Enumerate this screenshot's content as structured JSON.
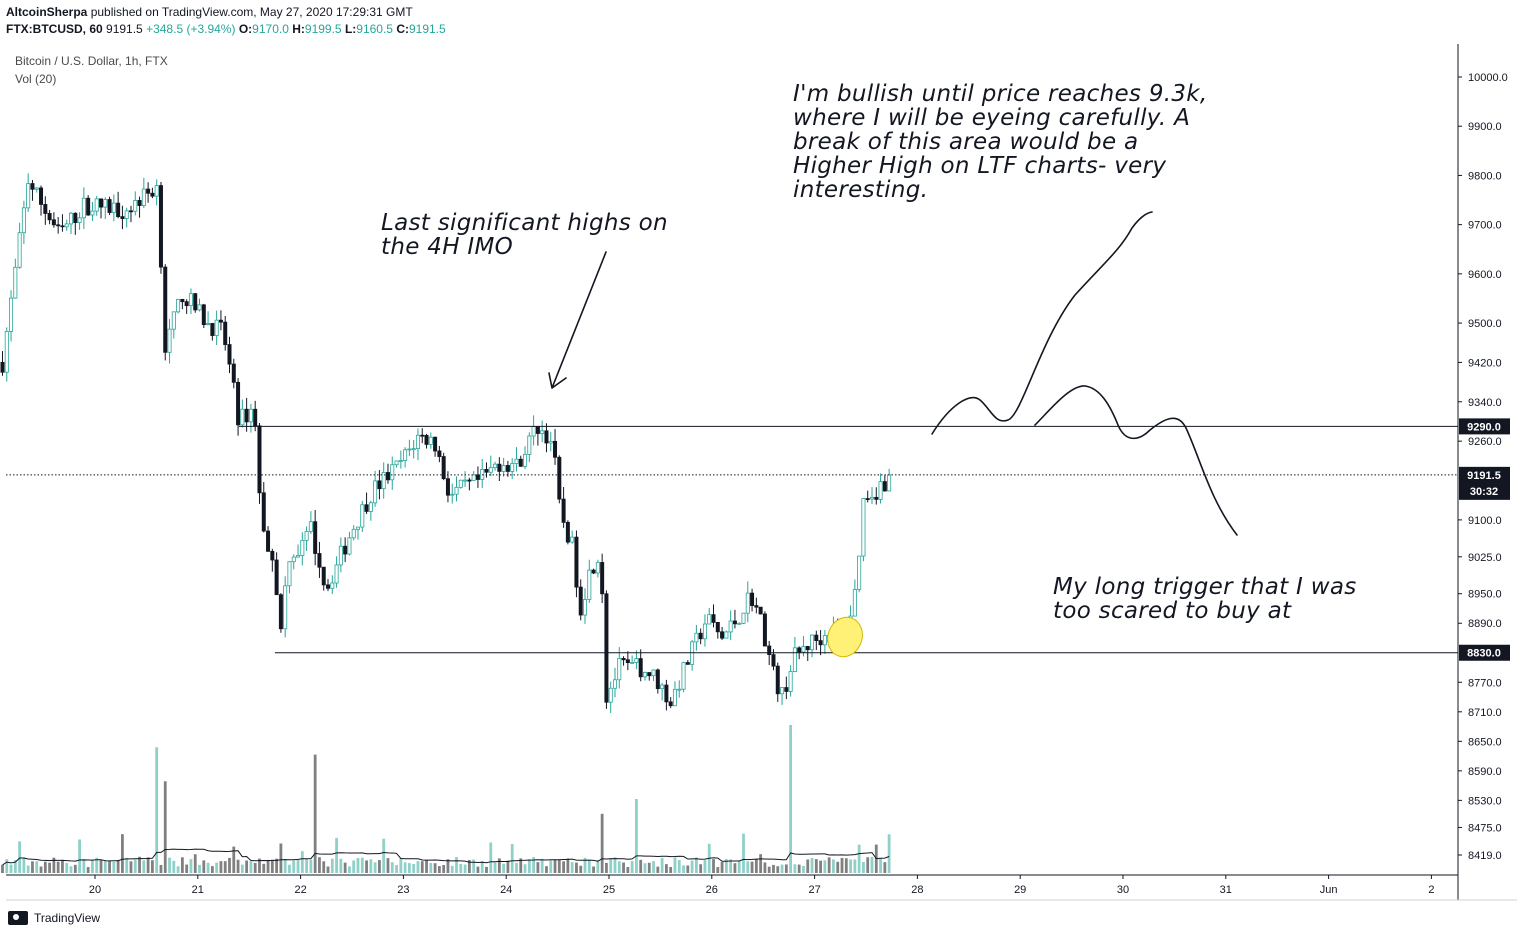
{
  "header": {
    "author": "AltcoinSherpa",
    "published": " published on TradingView.com, May 27, 2020 17:29:31 GMT",
    "symbol": "FTX:BTCUSD, 60",
    "last": "9191.5",
    "change": "+348.5 (+3.94%)",
    "o_label": "O:",
    "o_value": "9170.0",
    "h_label": "H:",
    "h_value": "9199.5",
    "l_label": "L:",
    "l_value": "9160.5",
    "c_label": "C:",
    "c_value": "9191.5"
  },
  "legend": {
    "instrument": "Bitcoin / U.S. Dollar, 1h, FTX",
    "volume": "Vol (20)"
  },
  "annotations": {
    "note_top": "I'm bullish until price reaches 9.3k,\nwhere I will be eyeing carefully. A\nbreak of this area would be a\nHigher High on LTF charts- very\ninteresting.",
    "note_highs": "Last significant highs on\nthe 4H IMO",
    "note_trigger": "My long trigger that I was\ntoo scared to buy at"
  },
  "footer": {
    "brand": "TradingView"
  },
  "colors": {
    "bull": "#26a69a",
    "bear": "#131722",
    "vol_bull": "#8fd0c9",
    "vol_bear": "#808080",
    "highlight": "#fff176",
    "axis": "#131722"
  },
  "chart_data": {
    "type": "candlestick",
    "symbol": "FTX:BTCUSD",
    "timeframe": "1h",
    "y_axis": {
      "ticks": [
        10000.0,
        9900.0,
        9800.0,
        9700.0,
        9600.0,
        9500.0,
        9420.0,
        9340.0,
        9260.0,
        9100.0,
        9025.0,
        8950.0,
        8890.0,
        8770.0,
        8710.0,
        8650.0,
        8590.0,
        8530.0,
        8475.0,
        8419.0
      ],
      "labels": [
        "10000.0",
        "9900.0",
        "9800.0",
        "9700.0",
        "9600.0",
        "9500.0",
        "9420.0",
        "9340.0",
        "9260.0",
        "9100.0",
        "9025.0",
        "8950.0",
        "8890.0",
        "8770.0",
        "8710.0",
        "8650.0",
        "8590.0",
        "8530.0",
        "8475.0",
        "8419.0"
      ]
    },
    "x_axis": {
      "labels": [
        "20",
        "21",
        "22",
        "23",
        "24",
        "25",
        "26",
        "27",
        "28",
        "29",
        "30",
        "31",
        "Jun",
        "2"
      ]
    },
    "levels": [
      {
        "price": 9290.0,
        "label": "9290.0"
      },
      {
        "price": 8830.0,
        "label": "8830.0"
      }
    ],
    "last_price": {
      "price": 9191.5,
      "label": "9191.5",
      "countdown": "30:32"
    },
    "path_anchors": [
      {
        "day": 19.1,
        "price": 9420
      },
      {
        "day": 19.35,
        "price": 9790
      },
      {
        "day": 19.65,
        "price": 9680
      },
      {
        "day": 19.9,
        "price": 9740
      },
      {
        "day": 20.3,
        "price": 9730
      },
      {
        "day": 20.62,
        "price": 9780
      },
      {
        "day": 20.67,
        "price": 9440
      },
      {
        "day": 20.85,
        "price": 9560
      },
      {
        "day": 21.1,
        "price": 9500
      },
      {
        "day": 21.25,
        "price": 9480
      },
      {
        "day": 21.4,
        "price": 9300
      },
      {
        "day": 21.55,
        "price": 9330
      },
      {
        "day": 21.62,
        "price": 9080
      },
      {
        "day": 21.75,
        "price": 9020
      },
      {
        "day": 21.8,
        "price": 8850
      },
      {
        "day": 21.88,
        "price": 9030
      },
      {
        "day": 22.0,
        "price": 9040
      },
      {
        "day": 22.1,
        "price": 9080
      },
      {
        "day": 22.25,
        "price": 8960
      },
      {
        "day": 22.5,
        "price": 9080
      },
      {
        "day": 22.7,
        "price": 9160
      },
      {
        "day": 22.95,
        "price": 9210
      },
      {
        "day": 23.15,
        "price": 9270
      },
      {
        "day": 23.3,
        "price": 9260
      },
      {
        "day": 23.45,
        "price": 9150
      },
      {
        "day": 23.75,
        "price": 9180
      },
      {
        "day": 23.95,
        "price": 9220
      },
      {
        "day": 24.1,
        "price": 9210
      },
      {
        "day": 24.3,
        "price": 9290
      },
      {
        "day": 24.45,
        "price": 9260
      },
      {
        "day": 24.52,
        "price": 9120
      },
      {
        "day": 24.65,
        "price": 9040
      },
      {
        "day": 24.72,
        "price": 8920
      },
      {
        "day": 24.82,
        "price": 9000
      },
      {
        "day": 24.92,
        "price": 9040
      },
      {
        "day": 24.97,
        "price": 8740
      },
      {
        "day": 25.1,
        "price": 8800
      },
      {
        "day": 25.3,
        "price": 8800
      },
      {
        "day": 25.45,
        "price": 8780
      },
      {
        "day": 25.6,
        "price": 8730
      },
      {
        "day": 25.78,
        "price": 8820
      },
      {
        "day": 25.95,
        "price": 8900
      },
      {
        "day": 26.1,
        "price": 8860
      },
      {
        "day": 26.25,
        "price": 8900
      },
      {
        "day": 26.38,
        "price": 8950
      },
      {
        "day": 26.5,
        "price": 8880
      },
      {
        "day": 26.58,
        "price": 8800
      },
      {
        "day": 26.68,
        "price": 8740
      },
      {
        "day": 26.8,
        "price": 8820
      },
      {
        "day": 26.95,
        "price": 8850
      },
      {
        "day": 27.15,
        "price": 8870
      },
      {
        "day": 27.3,
        "price": 8860
      },
      {
        "day": 27.4,
        "price": 8960
      },
      {
        "day": 27.48,
        "price": 9150
      },
      {
        "day": 27.6,
        "price": 9160
      },
      {
        "day": 27.74,
        "price": 9191.5
      }
    ],
    "volume_spikes": [
      {
        "day": 20.6,
        "ratio": 0.85
      },
      {
        "day": 20.7,
        "ratio": 0.62
      },
      {
        "day": 22.15,
        "ratio": 0.8
      },
      {
        "day": 24.95,
        "ratio": 0.4
      },
      {
        "day": 25.25,
        "ratio": 0.5
      },
      {
        "day": 26.78,
        "ratio": 1.0
      }
    ],
    "volume_ma_period": 20
  }
}
